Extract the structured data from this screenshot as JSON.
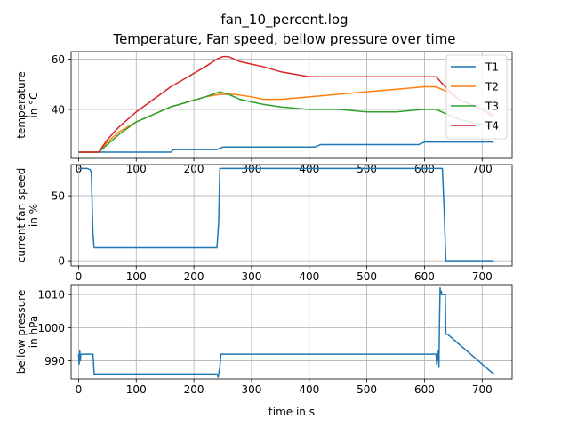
{
  "figure": {
    "title_line1": "fan_10_percent.log",
    "title_line2": "Temperature, Fan speed, bellow pressure over time"
  },
  "colors": {
    "T1": "#1f77b4",
    "T2": "#ff7f0e",
    "T3": "#2ca02c",
    "T4": "#d62728",
    "grid": "#b0b0b0"
  },
  "chart_data": [
    {
      "type": "line",
      "ylabel_line1": "temperature",
      "ylabel_line2": "in °C",
      "xlim": [
        -13,
        752
      ],
      "ylim": [
        20.5,
        63
      ],
      "xticks": [
        0,
        100,
        200,
        300,
        400,
        500,
        600,
        700
      ],
      "yticks": [
        40,
        60
      ],
      "grid": true,
      "legend_position": "upper-right",
      "series": [
        {
          "name": "T1",
          "x": [
            0,
            30,
            60,
            160,
            165,
            240,
            250,
            410,
            420,
            590,
            600,
            720
          ],
          "y": [
            23,
            23,
            23,
            23,
            24,
            24,
            25,
            25,
            26,
            26,
            27,
            27
          ]
        },
        {
          "name": "T2",
          "x": [
            0,
            35,
            50,
            70,
            100,
            130,
            160,
            190,
            220,
            245,
            270,
            300,
            320,
            350,
            400,
            450,
            500,
            550,
            600,
            620,
            640,
            660,
            700,
            720
          ],
          "y": [
            23,
            23,
            27,
            31,
            35,
            38,
            41,
            43,
            45,
            46,
            46,
            45,
            44,
            44,
            45,
            46,
            47,
            48,
            49,
            49,
            47,
            44,
            40,
            38
          ]
        },
        {
          "name": "T3",
          "x": [
            0,
            35,
            50,
            70,
            100,
            130,
            160,
            190,
            220,
            245,
            260,
            280,
            300,
            320,
            350,
            400,
            450,
            500,
            550,
            600,
            620,
            640,
            660,
            700,
            720
          ],
          "y": [
            23,
            23,
            26,
            30,
            35,
            38,
            41,
            43,
            45,
            47,
            46,
            44,
            43,
            42,
            41,
            40,
            40,
            39,
            39,
            40,
            40,
            38,
            36,
            34,
            33
          ]
        },
        {
          "name": "T4",
          "x": [
            0,
            35,
            50,
            70,
            100,
            130,
            160,
            190,
            220,
            240,
            250,
            260,
            280,
            300,
            320,
            350,
            400,
            450,
            500,
            550,
            600,
            620,
            640,
            660,
            700,
            720
          ],
          "y": [
            23,
            23,
            28,
            33,
            39,
            44,
            49,
            53,
            57,
            60,
            61,
            61,
            59,
            58,
            57,
            55,
            53,
            53,
            53,
            53,
            53,
            53,
            48,
            44,
            40,
            37
          ]
        }
      ]
    },
    {
      "type": "line",
      "ylabel_line1": "current fan speed",
      "ylabel_line2": "in %",
      "xlim": [
        -13,
        752
      ],
      "ylim": [
        -4,
        74
      ],
      "xticks": [
        0,
        100,
        200,
        300,
        400,
        500,
        600,
        700
      ],
      "yticks": [
        0,
        50
      ],
      "grid": true,
      "series": [
        {
          "x": [
            0,
            15,
            20,
            22,
            25,
            27,
            100,
            200,
            240,
            243,
            245,
            247,
            300,
            400,
            500,
            600,
            628,
            631,
            634,
            637,
            640,
            720
          ],
          "y": [
            71,
            71,
            70,
            68,
            20,
            10,
            10,
            10,
            10,
            30,
            71,
            71,
            71,
            71,
            71,
            71,
            71,
            71,
            40,
            0,
            0,
            0
          ]
        }
      ]
    },
    {
      "type": "line",
      "ylabel_line1": "bellow pressure",
      "ylabel_line2": "in hPa",
      "xaxis_label": "time in s",
      "xlim": [
        -13,
        752
      ],
      "ylim": [
        984.5,
        1013
      ],
      "xticks": [
        0,
        100,
        200,
        300,
        400,
        500,
        600,
        700
      ],
      "yticks": [
        990,
        1000,
        1010
      ],
      "grid": true,
      "series": [
        {
          "x": [
            0,
            1,
            2,
            3,
            4,
            5,
            25,
            26,
            27,
            100,
            200,
            240,
            242,
            245,
            247,
            400,
            500,
            600,
            620,
            621,
            622,
            623,
            624,
            625,
            626,
            627,
            628,
            629,
            630,
            636,
            637,
            640,
            720
          ],
          "y": [
            992,
            989,
            993,
            990,
            992,
            992,
            992,
            989,
            986,
            986,
            986,
            986,
            985,
            988,
            992,
            992,
            992,
            992,
            992,
            989,
            992,
            990,
            993,
            988,
            1002,
            1012,
            1010,
            1011,
            1010,
            1010,
            998,
            998,
            986
          ]
        }
      ]
    }
  ]
}
